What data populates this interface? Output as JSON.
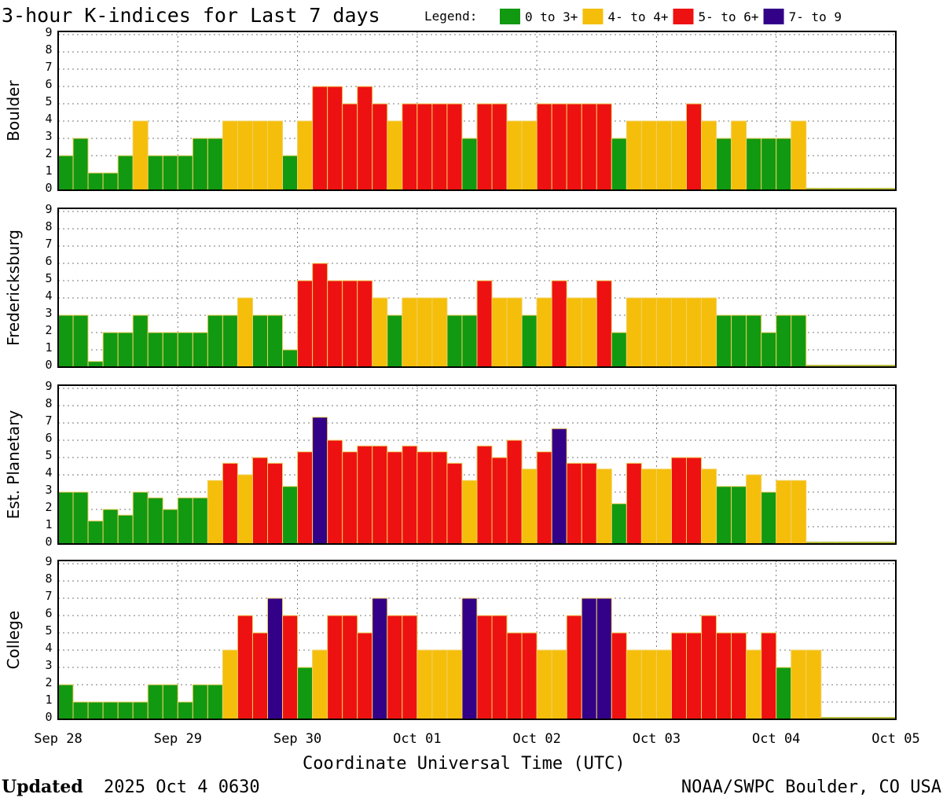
{
  "title": "3-hour K-indices for Last 7 days",
  "legend": {
    "label": "Legend:",
    "items": [
      {
        "name": "0 to 3+",
        "color": "#119911"
      },
      {
        "name": "4- to 4+",
        "color": "#f5be0a"
      },
      {
        "name": "5- to 6+",
        "color": "#ee1111"
      },
      {
        "name": "7- to 9",
        "color": "#330088"
      }
    ]
  },
  "xlabel": "Coordinate Universal Time (UTC)",
  "footer": {
    "updated": "Updated",
    "time": "2025 Oct  4 0630",
    "source": "NOAA/SWPC Boulder, CO USA"
  },
  "chart_data": [
    {
      "type": "bar",
      "ylabel": "Boulder",
      "ylim": [
        0,
        9
      ],
      "yticks": [
        0,
        1,
        2,
        3,
        4,
        5,
        6,
        7,
        8,
        9
      ],
      "grid": true,
      "values": [
        2,
        3,
        1,
        1,
        2,
        4,
        2,
        2,
        2,
        3,
        3,
        4,
        4,
        4,
        4,
        2,
        4,
        6,
        6,
        5,
        6,
        5,
        4,
        5,
        5,
        5,
        5,
        3,
        5,
        5,
        4,
        4,
        5,
        5,
        5,
        5,
        5,
        3,
        4,
        4,
        4,
        4,
        5,
        4,
        3,
        4,
        3,
        3,
        3,
        4,
        null,
        null,
        null,
        null,
        null,
        null
      ]
    },
    {
      "type": "bar",
      "ylabel": "Fredericksburg",
      "ylim": [
        0,
        9
      ],
      "yticks": [
        0,
        1,
        2,
        3,
        4,
        5,
        6,
        7,
        8,
        9
      ],
      "grid": true,
      "values": [
        3,
        3,
        0.33,
        2,
        2,
        3,
        2,
        2,
        2,
        2,
        3,
        3,
        4,
        3,
        3,
        1,
        5,
        6,
        5,
        5,
        5,
        4,
        3,
        4,
        4,
        4,
        3,
        3,
        5,
        4,
        4,
        3,
        4,
        5,
        4,
        4,
        5,
        2,
        4,
        4,
        4,
        4,
        4,
        4,
        3,
        3,
        3,
        2,
        3,
        3,
        null,
        null,
        null,
        null,
        null,
        null
      ]
    },
    {
      "type": "bar",
      "ylabel": "Est. Planetary",
      "ylim": [
        0,
        9
      ],
      "yticks": [
        0,
        1,
        2,
        3,
        4,
        5,
        6,
        7,
        8,
        9
      ],
      "grid": true,
      "values": [
        3,
        3,
        1.33,
        2,
        1.67,
        3,
        2.67,
        2,
        2.67,
        2.67,
        3.67,
        4.67,
        4,
        5,
        4.67,
        3.33,
        5.33,
        7.33,
        6,
        5.33,
        5.67,
        5.67,
        5.33,
        5.67,
        5.33,
        5.33,
        4.67,
        3.67,
        5.67,
        5,
        6,
        4.33,
        5.33,
        6.67,
        4.67,
        4.67,
        4.33,
        2.33,
        4.67,
        4.33,
        4.33,
        5,
        5,
        4.33,
        3.33,
        3.33,
        4,
        3,
        3.67,
        3.67,
        null,
        null,
        null,
        null,
        null,
        null
      ]
    },
    {
      "type": "bar",
      "ylabel": "College",
      "ylim": [
        0,
        9
      ],
      "yticks": [
        0,
        1,
        2,
        3,
        4,
        5,
        6,
        7,
        8,
        9
      ],
      "grid": true,
      "values": [
        2,
        1,
        1,
        1,
        1,
        1,
        2,
        2,
        1,
        2,
        2,
        4,
        6,
        5,
        7,
        6,
        3,
        4,
        6,
        6,
        5,
        7,
        6,
        6,
        4,
        4,
        4,
        7,
        6,
        6,
        5,
        5,
        4,
        4,
        6,
        7,
        7,
        5,
        4,
        4,
        4,
        5,
        5,
        6,
        5,
        5,
        4,
        5,
        3,
        4,
        4,
        null,
        null,
        null,
        null,
        null
      ],
      "xlim": [
        0,
        56
      ],
      "xticks": [
        {
          "value": 0,
          "label": "Sep 28"
        },
        {
          "value": 8,
          "label": "Sep 29"
        },
        {
          "value": 16,
          "label": "Sep 30"
        },
        {
          "value": 24,
          "label": "Oct 01"
        },
        {
          "value": 32,
          "label": "Oct 02"
        },
        {
          "value": 40,
          "label": "Oct 03"
        },
        {
          "value": 48,
          "label": "Oct 04"
        },
        {
          "value": 56,
          "label": "Oct 05"
        }
      ]
    }
  ]
}
